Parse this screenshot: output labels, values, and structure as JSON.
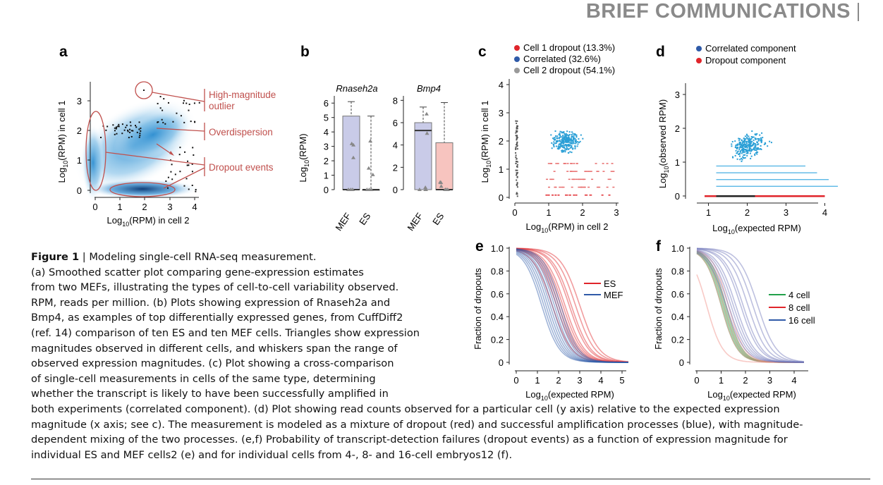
{
  "journal": {
    "section": "BRIEF COMMUNICATIONS"
  },
  "panels": {
    "a": {
      "letter": "a",
      "xlabel_pre": "Log",
      "xlabel_sub": "10",
      "xlabel_post": "(RPM) in cell 2",
      "ylabel_pre": "Log",
      "ylabel_sub": "10",
      "ylabel_post": "(RPM) in cell 1",
      "xticks": [
        "0",
        "1",
        "2",
        "3",
        "4"
      ],
      "yticks": [
        "0",
        "1",
        "2",
        "3"
      ],
      "annotations": [
        "High-magnitude",
        "outlier",
        "Overdispersion",
        "Dropout events"
      ]
    },
    "b": {
      "letter": "b",
      "ylabel_pre": "Log",
      "ylabel_sub": "10",
      "ylabel_post": "(RPM)",
      "gene1": "Rnaseh2a",
      "gene2": "Bmp4",
      "yticks1": [
        "0",
        "1",
        "2",
        "3",
        "4",
        "5",
        "6"
      ],
      "yticks2": [
        "0",
        "2",
        "4",
        "6",
        "8"
      ],
      "groups": [
        "MEF",
        "ES"
      ]
    },
    "c": {
      "letter": "c",
      "legend": [
        "Cell 1 dropout (13.3%)",
        "Correlated (32.6%)",
        "Cell 2 dropout (54.1%)"
      ],
      "legend_colors": [
        "#e0252b",
        "#2f5aa8",
        "#999999"
      ],
      "xlabel_pre": "Log",
      "xlabel_sub": "10",
      "xlabel_post": "(RPM) in cell 2",
      "ylabel_pre": "Log",
      "ylabel_sub": "10",
      "ylabel_post": "(RPM) in cell 1",
      "xticks": [
        "0",
        "1",
        "2",
        "3"
      ],
      "yticks": [
        "0",
        "1",
        "2",
        "3",
        "4"
      ]
    },
    "d": {
      "letter": "d",
      "legend": [
        "Correlated component",
        "Dropout component"
      ],
      "legend_colors": [
        "#2f5aa8",
        "#e0252b"
      ],
      "xlabel_pre": "Log",
      "xlabel_sub": "10",
      "xlabel_post": "(expected RPM)",
      "ylabel_pre": "Log",
      "ylabel_sub": "10",
      "ylabel_post": "(observed RPM)",
      "xticks": [
        "1",
        "2",
        "3",
        "4"
      ],
      "yticks": [
        "0",
        "1",
        "2",
        "3"
      ]
    },
    "e": {
      "letter": "e",
      "ylabel": "Fraction of dropouts",
      "xlabel_pre": "Log",
      "xlabel_sub": "10",
      "xlabel_post": "(expected RPM)",
      "xticks": [
        "0",
        "1",
        "2",
        "3",
        "4",
        "5"
      ],
      "yticks": [
        "0",
        "0.2",
        "0.4",
        "0.6",
        "0.8",
        "1.0"
      ],
      "legend": [
        "ES",
        "MEF"
      ],
      "legend_colors": [
        "#e0252b",
        "#2f5aa8"
      ]
    },
    "f": {
      "letter": "f",
      "ylabel": "Fraction of dropouts",
      "xlabel_pre": "Log",
      "xlabel_sub": "10",
      "xlabel_post": "(expected RPM)",
      "xticks": [
        "0",
        "1",
        "2",
        "3",
        "4"
      ],
      "yticks": [
        "0",
        "0.2",
        "0.4",
        "0.6",
        "0.8",
        "1.0"
      ],
      "legend": [
        "4 cell",
        "8 cell",
        "16 cell"
      ],
      "legend_colors": [
        "#22a14a",
        "#e0252b",
        "#2f5aa8"
      ]
    }
  },
  "caption": {
    "title_bold": "Figure 1",
    "title_sep": " | ",
    "title_text": "Modeling single-cell RNA-seq measurement.",
    "line1": "(a) Smoothed scatter plot comparing gene-expression estimates",
    "line2": "from two MEFs, illustrating the types of cell-to-cell variability observed.",
    "line3": "RPM, reads per million. (b) Plots showing expression of Rnaseh2a and",
    "line4": "Bmp4, as examples of top differentially expressed genes, from CuffDiff2",
    "line5": "(ref. 14) comparison of ten ES and ten MEF cells. Triangles show expression",
    "line6": "magnitudes observed in different cells, and whiskers span the range of",
    "line7": "observed expression magnitudes. (c) Plot showing a cross-comparison",
    "line8": "of single-cell measurements in cells of the same type, determining",
    "line9": "whether the transcript is likely to have been successfully amplified in",
    "line10": "both experiments (correlated component). (d) Plot showing read counts observed for a particular cell (y axis) relative to the expected expression",
    "line11": "magnitude (x axis; see c). The measurement is modeled as a mixture of dropout (red) and successful amplification processes (blue), with magnitude-",
    "line12": "dependent mixing of the two processes. (e,f) Probability of transcript-detection failures (dropout events) as a function of expression magnitude for",
    "line13": "individual ES and MEF cells2 (e) and for individual cells from 4-, 8- and 16-cell embryos12 (f)."
  },
  "chart_data": [
    {
      "panel": "b-Rnaseh2a",
      "type": "box",
      "categories": [
        "MEF",
        "ES"
      ],
      "box_upper": [
        5.1,
        0.0
      ],
      "box_lower": [
        0.0,
        0.0
      ],
      "whisker_max": [
        6.1,
        5.1
      ],
      "median": [
        0.0,
        0.0
      ],
      "ylim": [
        0,
        6.5
      ],
      "colors": [
        "#c9cbe8",
        "#f7c4bf"
      ]
    },
    {
      "panel": "b-Bmp4",
      "type": "box",
      "categories": [
        "MEF",
        "ES"
      ],
      "box_upper": [
        6.0,
        4.2
      ],
      "box_lower": [
        0.0,
        0.0
      ],
      "whisker_max": [
        7.4,
        7.8
      ],
      "median": [
        5.3,
        0.0
      ],
      "ylim": [
        0,
        8.4
      ],
      "colors": [
        "#c9cbe8",
        "#f7c4bf"
      ]
    },
    {
      "panel": "e",
      "type": "line",
      "series": [
        {
          "name": "ES",
          "midpoints": [
            1.9,
            2.2,
            2.5,
            2.0,
            2.8,
            1.7,
            2.3,
            3.0,
            2.1,
            2.6
          ],
          "slope": 2.2
        },
        {
          "name": "MEF",
          "midpoints": [
            1.3,
            1.5,
            1.7,
            1.9,
            1.6,
            2.0,
            1.4,
            1.8,
            1.2,
            2.1
          ],
          "slope": 2.4
        }
      ],
      "xlim": [
        0,
        5.3
      ],
      "ylim": [
        0,
        1.0
      ]
    },
    {
      "panel": "f",
      "type": "line",
      "series": [
        {
          "name": "4 cell",
          "midpoints": [
            1.0,
            1.1,
            1.2,
            1.05,
            1.15
          ],
          "slope": 3.0
        },
        {
          "name": "8 cell",
          "midpoints": [
            0.4,
            1.1,
            1.2,
            1.0,
            1.3
          ],
          "slope": 3.0
        },
        {
          "name": "16 cell",
          "midpoints": [
            1.2,
            1.4,
            1.6,
            1.9,
            2.1,
            1.3,
            1.5,
            1.8,
            2.3,
            2.5
          ],
          "slope": 2.6
        }
      ],
      "xlim": [
        0,
        4.4
      ],
      "ylim": [
        0,
        1.0
      ]
    }
  ]
}
